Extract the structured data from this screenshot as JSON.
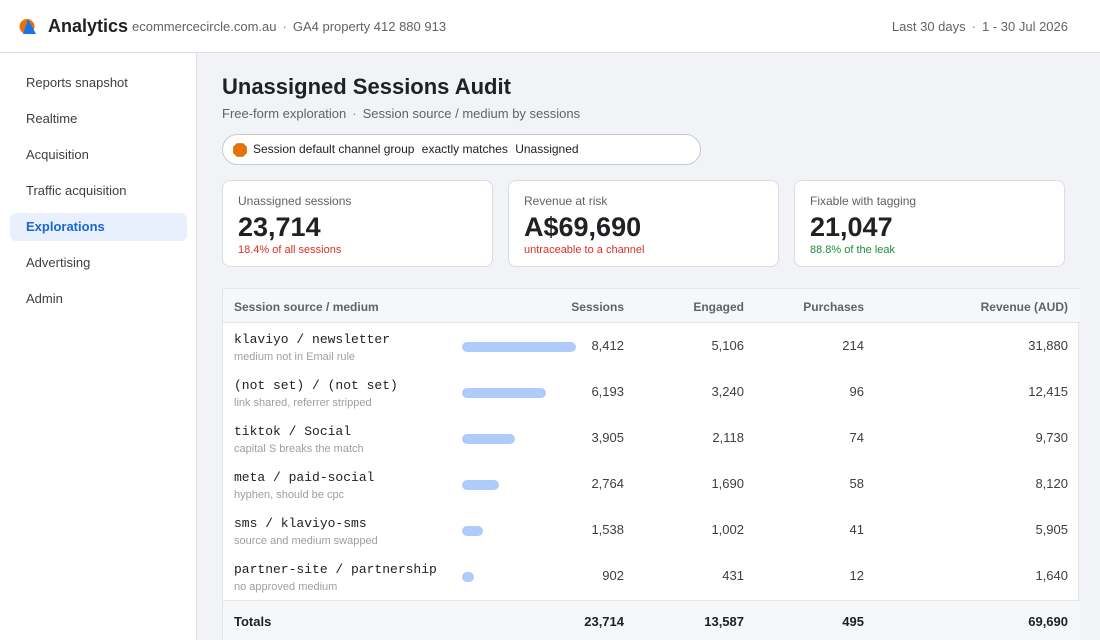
{
  "header": {
    "app_title": "Analytics",
    "site": "ecommercecircle.com.au",
    "property": "GA4 property 412 880 913",
    "date_preset": "Last 30 days",
    "date_range": "1 - 30 Jul 2026"
  },
  "sidebar": {
    "items": [
      {
        "label": "Reports snapshot",
        "active": false
      },
      {
        "label": "Realtime",
        "active": false
      },
      {
        "label": "Acquisition",
        "active": false
      },
      {
        "label": "Traffic acquisition",
        "active": false
      },
      {
        "label": "Explorations",
        "active": true
      },
      {
        "label": "Advertising",
        "active": false
      },
      {
        "label": "Admin",
        "active": false
      }
    ]
  },
  "page": {
    "title": "Unassigned Sessions Audit",
    "subtitle_type": "Free-form exploration",
    "subtitle_detail": "Session source / medium by sessions"
  },
  "filter": {
    "dimension": "Session default channel group",
    "operator": "exactly matches",
    "value": "Unassigned",
    "icon_color": "#e37400"
  },
  "cards": [
    {
      "label": "Unassigned sessions",
      "value": "23,714",
      "note": "18.4% of all sessions",
      "note_color": "#d93025"
    },
    {
      "label": "Revenue at risk",
      "value": "A$69,690",
      "note": "untraceable to a channel",
      "note_color": "#d93025"
    },
    {
      "label": "Fixable with tagging",
      "value": "21,047",
      "note": "88.8% of the leak",
      "note_color": "#1e8e3e"
    }
  ],
  "table": {
    "headers": {
      "source": "Session source / medium",
      "sessions": "Sessions",
      "engaged": "Engaged",
      "purchases": "Purchases",
      "revenue": "Revenue (AUD)"
    },
    "max_sessions": 8412,
    "rows": [
      {
        "source": "klaviyo / newsletter",
        "note": "medium not in Email rule",
        "sessions": "8,412",
        "sessions_value": 8412,
        "engaged": "5,106",
        "purchases": "214",
        "revenue": "31,880"
      },
      {
        "source": "(not set) / (not set)",
        "note": "link shared, referrer stripped",
        "sessions": "6,193",
        "sessions_value": 6193,
        "engaged": "3,240",
        "purchases": "96",
        "revenue": "12,415"
      },
      {
        "source": "tiktok / Social",
        "note": "capital S breaks the match",
        "sessions": "3,905",
        "sessions_value": 3905,
        "engaged": "2,118",
        "purchases": "74",
        "revenue": "9,730"
      },
      {
        "source": "meta / paid-social",
        "note": "hyphen, should be cpc",
        "sessions": "2,764",
        "sessions_value": 2764,
        "engaged": "1,690",
        "purchases": "58",
        "revenue": "8,120"
      },
      {
        "source": "sms / klaviyo-sms",
        "note": "source and medium swapped",
        "sessions": "1,538",
        "sessions_value": 1538,
        "engaged": "1,002",
        "purchases": "41",
        "revenue": "5,905"
      },
      {
        "source": "partner-site / partnership",
        "note": "no approved medium",
        "sessions": "902",
        "sessions_value": 902,
        "engaged": "431",
        "purchases": "12",
        "revenue": "1,640"
      }
    ],
    "totals": {
      "label": "Totals",
      "sessions": "23,714",
      "engaged": "13,587",
      "purchases": "495",
      "revenue": "69,690"
    }
  },
  "colors": {
    "accent": "#1967d2",
    "bar": "#aecbfa",
    "negative": "#d93025",
    "positive": "#1e8e3e"
  }
}
